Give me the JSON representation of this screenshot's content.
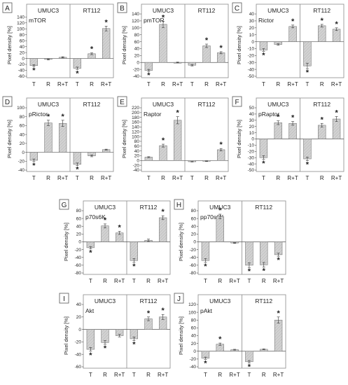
{
  "chart_data": [
    {
      "id": "mTOR",
      "letter": "A",
      "title": "mTOR",
      "type": "bar",
      "groups": [
        "UMUC3",
        "RT112"
      ],
      "categories": [
        "T",
        "R",
        "R+T"
      ],
      "ylabel": "Pixel density [%]",
      "ylim": [
        -60,
        150
      ],
      "yticks": [
        -60,
        -40,
        -20,
        0,
        20,
        40,
        60,
        80,
        100,
        120,
        140
      ],
      "series": [
        {
          "values": [
            -24,
            -3,
            4
          ],
          "errors": [
            3,
            2,
            2
          ],
          "sig": [
            true,
            false,
            false
          ]
        },
        {
          "values": [
            -33,
            16,
            101
          ],
          "errors": [
            4,
            3,
            8
          ],
          "sig": [
            true,
            true,
            true
          ]
        }
      ]
    },
    {
      "id": "pmTOR",
      "letter": "B",
      "title": "pmTOR",
      "type": "bar",
      "groups": [
        "UMUC3",
        "RT112"
      ],
      "categories": [
        "T",
        "R",
        "R+T"
      ],
      "ylabel": "Pixel density [%]",
      "ylim": [
        -40,
        140
      ],
      "yticks": [
        -40,
        -20,
        0,
        20,
        40,
        60,
        80,
        100,
        120,
        140
      ],
      "series": [
        {
          "values": [
            -23,
            110,
            0
          ],
          "errors": [
            3,
            9,
            1
          ],
          "sig": [
            true,
            true,
            false
          ]
        },
        {
          "values": [
            -8,
            48,
            28
          ],
          "errors": [
            2,
            5,
            3
          ],
          "sig": [
            false,
            true,
            true
          ]
        }
      ]
    },
    {
      "id": "Rictor",
      "letter": "C",
      "title": "Rictor",
      "type": "bar",
      "groups": [
        "UMUC3",
        "RT112"
      ],
      "categories": [
        "T",
        "R",
        "R+T"
      ],
      "ylabel": "Pixel density [%]",
      "ylim": [
        -50,
        40
      ],
      "yticks": [
        -50,
        -40,
        -30,
        -20,
        -10,
        0,
        10,
        20,
        30,
        40
      ],
      "series": [
        {
          "values": [
            -12,
            -4,
            22
          ],
          "errors": [
            2,
            1,
            2
          ],
          "sig": [
            true,
            false,
            true
          ]
        },
        {
          "values": [
            -35,
            23,
            18
          ],
          "errors": [
            4,
            2,
            2
          ],
          "sig": [
            true,
            true,
            true
          ]
        }
      ]
    },
    {
      "id": "pRictor",
      "letter": "D",
      "title": "pRictor",
      "type": "bar",
      "groups": [
        "UMUC3",
        "RT112"
      ],
      "categories": [
        "T",
        "R",
        "R+T"
      ],
      "ylabel": "Pixel density [%]",
      "ylim": [
        -40,
        100
      ],
      "yticks": [
        -40,
        -20,
        0,
        20,
        40,
        60,
        80,
        100
      ],
      "series": [
        {
          "values": [
            -18,
            66,
            65
          ],
          "errors": [
            3,
            6,
            7
          ],
          "sig": [
            true,
            true,
            true
          ]
        },
        {
          "values": [
            -27,
            -8,
            6
          ],
          "errors": [
            3,
            2,
            1
          ],
          "sig": [
            true,
            false,
            false
          ]
        }
      ]
    },
    {
      "id": "Raptor",
      "letter": "E",
      "title": "Raptor",
      "type": "bar",
      "groups": [
        "UMUC3",
        "RT112"
      ],
      "categories": [
        "T",
        "R",
        "R+T"
      ],
      "ylabel": "Pixel density [%]",
      "ylim": [
        -40,
        220
      ],
      "yticks": [
        -40,
        -20,
        0,
        20,
        40,
        60,
        80,
        100,
        120,
        140,
        160,
        180,
        200,
        220
      ],
      "series": [
        {
          "values": [
            14,
            62,
            168
          ],
          "errors": [
            2,
            6,
            15
          ],
          "sig": [
            false,
            true,
            true
          ]
        },
        {
          "values": [
            -5,
            -3,
            45
          ],
          "errors": [
            1,
            1,
            5
          ],
          "sig": [
            false,
            false,
            true
          ]
        }
      ]
    },
    {
      "id": "pRaptor",
      "letter": "F",
      "title": "pRaptor",
      "type": "bar",
      "groups": [
        "UMUC3",
        "RT112"
      ],
      "categories": [
        "T",
        "R",
        "R+T"
      ],
      "ylabel": "Pixel density [%]",
      "ylim": [
        -50,
        50
      ],
      "yticks": [
        -50,
        -40,
        -30,
        -20,
        -10,
        0,
        10,
        20,
        30,
        40,
        50
      ],
      "series": [
        {
          "values": [
            -30,
            26,
            25
          ],
          "errors": [
            3,
            3,
            3
          ],
          "sig": [
            true,
            true,
            true
          ]
        },
        {
          "values": [
            -32,
            22,
            32
          ],
          "errors": [
            3,
            3,
            4
          ],
          "sig": [
            true,
            true,
            true
          ]
        }
      ]
    },
    {
      "id": "p70s6K",
      "letter": "G",
      "title": "p70s6K",
      "type": "bar",
      "groups": [
        "UMUC3",
        "RT112"
      ],
      "categories": [
        "T",
        "R",
        "R+T"
      ],
      "ylabel": "Pixel density [%]",
      "ylim": [
        -80,
        80
      ],
      "yticks": [
        -80,
        -60,
        -40,
        -20,
        0,
        20,
        40,
        60,
        80
      ],
      "series": [
        {
          "values": [
            -15,
            41,
            23
          ],
          "errors": [
            3,
            5,
            4
          ],
          "sig": [
            true,
            true,
            true
          ]
        },
        {
          "values": [
            -48,
            4,
            62
          ],
          "errors": [
            5,
            3,
            5
          ],
          "sig": [
            true,
            false,
            true
          ]
        }
      ]
    },
    {
      "id": "pp70s6K",
      "letter": "H",
      "title": "pp70s6K",
      "type": "bar",
      "groups": [
        "UMUC3",
        "RT112"
      ],
      "categories": [
        "T",
        "R",
        "R+T"
      ],
      "ylabel": "Pixel density [%]",
      "ylim": [
        -80,
        80
      ],
      "yticks": [
        -80,
        -60,
        -40,
        -20,
        0,
        20,
        40,
        60,
        80
      ],
      "series": [
        {
          "values": [
            -48,
            65,
            -3
          ],
          "errors": [
            5,
            6,
            1
          ],
          "sig": [
            true,
            true,
            false
          ]
        },
        {
          "values": [
            -60,
            -59,
            -33
          ],
          "errors": [
            6,
            6,
            4
          ],
          "sig": [
            true,
            true,
            true
          ]
        }
      ]
    },
    {
      "id": "Akt",
      "letter": "I",
      "title": "Akt",
      "type": "bar",
      "groups": [
        "UMUC3",
        "RT112"
      ],
      "categories": [
        "T",
        "R",
        "R+T"
      ],
      "ylabel": "Pixel density [%]",
      "ylim": [
        -60,
        40
      ],
      "yticks": [
        -60,
        -40,
        -20,
        0,
        20,
        40
      ],
      "series": [
        {
          "values": [
            -32,
            -21,
            -10
          ],
          "errors": [
            3,
            3,
            2
          ],
          "sig": [
            true,
            true,
            false
          ]
        },
        {
          "values": [
            -15,
            17,
            20
          ],
          "errors": [
            3,
            3,
            4
          ],
          "sig": [
            true,
            true,
            true
          ]
        }
      ]
    },
    {
      "id": "pAkt",
      "letter": "J",
      "title": "pAkt",
      "type": "bar",
      "groups": [
        "UMUC3",
        "RT112"
      ],
      "categories": [
        "T",
        "R",
        "R+T"
      ],
      "ylabel": "Pixel density [%]",
      "ylim": [
        -40,
        120
      ],
      "yticks": [
        -40,
        -20,
        0,
        20,
        40,
        60,
        80,
        100,
        120
      ],
      "series": [
        {
          "values": [
            -18,
            18,
            4
          ],
          "errors": [
            3,
            3,
            1
          ],
          "sig": [
            true,
            true,
            false
          ]
        },
        {
          "values": [
            -27,
            5,
            80
          ],
          "errors": [
            3,
            1,
            8
          ],
          "sig": [
            true,
            false,
            true
          ]
        }
      ]
    }
  ],
  "significance_marker": "*",
  "colors": {
    "bar_fill": "#cccccc",
    "bar_stroke": "#7a7a7a",
    "panel_border": "#8a8a8a",
    "text": "#222222"
  }
}
